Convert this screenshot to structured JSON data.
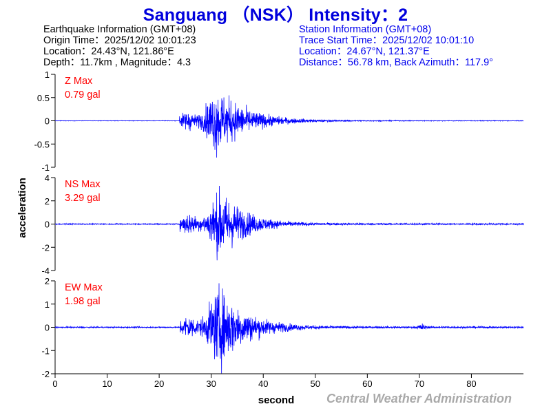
{
  "header": {
    "title": "Sanguang （NSK） Intensity：2"
  },
  "earthquake_info": {
    "heading": "Earthquake Information  (GMT+08)",
    "origin_time": "Origin Time：2025/12/02 10:01:23",
    "location": "Location：24.43°N, 121.86°E",
    "depth_magnitude": "Depth：11.7km , Magnitude：4.3"
  },
  "station_info": {
    "heading": "Station Information  (GMT+08)",
    "trace_start": "Trace Start Time：2025/12/02 10:01:10",
    "location": "Location：24.67°N, 121.37°E",
    "distance": "Distance：56.78 km, Back Azimuth：117.9°"
  },
  "credit": "Central Weather Administration",
  "colors": {
    "title": "#0000dd",
    "trace": "#0000ff",
    "max_label": "#ff0000",
    "credit": "#a9a9a9"
  },
  "chart_data": {
    "type": "line",
    "xlabel": "second",
    "ylabel": "acceleration",
    "xlim": [
      0,
      90
    ],
    "x_ticks": [
      0,
      10,
      20,
      30,
      40,
      50,
      60,
      70,
      80
    ],
    "panels": [
      {
        "component": "Z",
        "max_label": "Z Max",
        "max_value": "0.79 gal",
        "peak": 0.79,
        "ylim": [
          -1,
          1
        ],
        "y_ticks": [
          1,
          0.5,
          0,
          -0.5,
          -1
        ],
        "y_tick_labels": [
          "1",
          "0.5",
          "0",
          "-0.5",
          "-1"
        ],
        "pwave_onset": 23.9,
        "peak_time": 31.2,
        "pre_noise": 0.005,
        "pwave_amp": 0.3,
        "coda_decay": 5.5,
        "bursts": []
      },
      {
        "component": "NS",
        "max_label": "NS Max",
        "max_value": "3.29 gal",
        "peak": 3.29,
        "ylim": [
          -4,
          4
        ],
        "y_ticks": [
          4,
          2,
          0,
          -2,
          -4
        ],
        "y_tick_labels": [
          "4",
          "2",
          "0",
          "-2",
          "-4"
        ],
        "pwave_onset": 24.0,
        "peak_time": 31.8,
        "pre_noise": 0.05,
        "pwave_amp": 0.32,
        "coda_decay": 4.5,
        "bursts": []
      },
      {
        "component": "EW",
        "max_label": "EW Max",
        "max_value": "1.98 gal",
        "peak": 1.98,
        "ylim": [
          -2,
          2
        ],
        "y_ticks": [
          2,
          1,
          0,
          -1,
          -2
        ],
        "y_tick_labels": [
          "2",
          "1",
          "0",
          "-1",
          "-2"
        ],
        "pwave_onset": 24.0,
        "peak_time": 31.6,
        "pre_noise": 0.03,
        "pwave_amp": 0.3,
        "coda_decay": 5.0,
        "bursts": [
          {
            "t": 70.5,
            "amp": 0.14,
            "dur": 1.0
          }
        ]
      }
    ]
  }
}
